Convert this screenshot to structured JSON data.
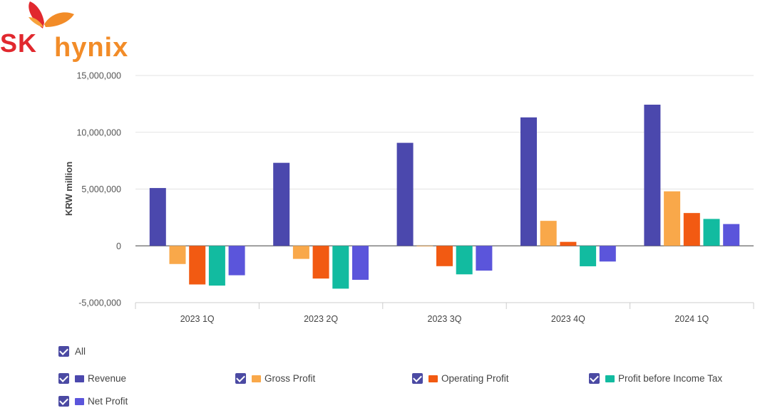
{
  "logo": {
    "sk": "SK",
    "hynix": "hynix"
  },
  "chart_data": {
    "type": "bar",
    "title": "",
    "xlabel": "",
    "ylabel": "KRW million",
    "ylim": [
      -5000000,
      15000000
    ],
    "yticks": [
      -5000000,
      0,
      5000000,
      10000000,
      15000000
    ],
    "ytick_labels": [
      "-5,000,000",
      "0",
      "5,000,000",
      "10,000,000",
      "15,000,000"
    ],
    "categories": [
      "2023 1Q",
      "2023 2Q",
      "2023 3Q",
      "2023 4Q",
      "2024 1Q"
    ],
    "series": [
      {
        "name": "Revenue",
        "color": "#4b48ad",
        "values": [
          5090000,
          7310000,
          9070000,
          11310000,
          12430000
        ]
      },
      {
        "name": "Gross Profit",
        "color": "#f9a84a",
        "values": [
          -1600000,
          -1150000,
          -50000,
          2200000,
          4800000
        ]
      },
      {
        "name": "Operating Profit",
        "color": "#f25a12",
        "values": [
          -3400000,
          -2880000,
          -1790000,
          350000,
          2890000
        ]
      },
      {
        "name": "Profit before Income Tax",
        "color": "#12bba0",
        "values": [
          -3500000,
          -3770000,
          -2510000,
          -1800000,
          2370000
        ]
      },
      {
        "name": "Net Profit",
        "color": "#5b55db",
        "values": [
          -2590000,
          -2990000,
          -2180000,
          -1380000,
          1920000
        ]
      }
    ],
    "grid": true
  },
  "legend": {
    "all_label": "All",
    "items": [
      {
        "label": "Revenue",
        "color": "#4b48ad"
      },
      {
        "label": "Gross Profit",
        "color": "#f9a84a"
      },
      {
        "label": "Operating Profit",
        "color": "#f25a12"
      },
      {
        "label": "Profit before Income Tax",
        "color": "#12bba0"
      },
      {
        "label": "Net Profit",
        "color": "#5b55db"
      }
    ]
  }
}
